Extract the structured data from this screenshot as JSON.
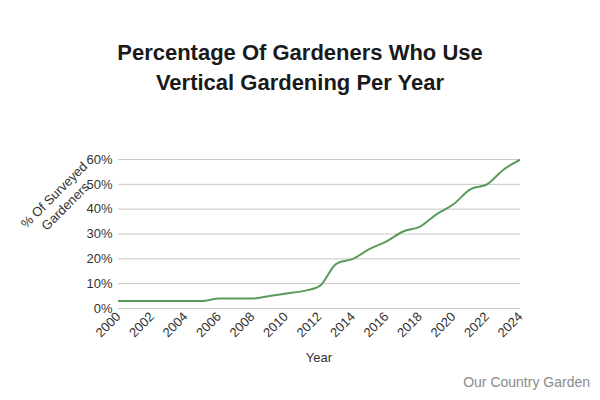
{
  "chart_data": {
    "type": "line",
    "title": "Percentage Of Gardeners Who Use Vertical Gardening Per Year",
    "x_label": "Year",
    "y_label": "% Of Surveyed Gardeners",
    "caption": "Our Country Garden",
    "x": [
      2000,
      2001,
      2002,
      2003,
      2004,
      2005,
      2006,
      2007,
      2008,
      2009,
      2010,
      2011,
      2012,
      2013,
      2014,
      2015,
      2016,
      2017,
      2018,
      2019,
      2020,
      2021,
      2022,
      2023,
      2024
    ],
    "values": [
      3,
      3,
      3,
      3,
      3,
      3,
      4,
      4,
      4,
      5,
      6,
      7,
      9,
      18,
      20,
      24,
      27,
      31,
      33,
      38,
      42,
      48,
      50,
      56,
      60
    ],
    "color": "#5a9a5a",
    "xlim": [
      2000,
      2024
    ],
    "xticks": [
      2000,
      2002,
      2004,
      2006,
      2008,
      2010,
      2012,
      2014,
      2016,
      2018,
      2020,
      2022,
      2024
    ],
    "ylim": [
      0,
      60
    ],
    "yticks": [
      {
        "value": 0,
        "label": "0%"
      },
      {
        "value": 10,
        "label": "10%"
      },
      {
        "value": 20,
        "label": "20%"
      },
      {
        "value": 30,
        "label": "30%"
      },
      {
        "value": 40,
        "label": "40%"
      },
      {
        "value": 50,
        "label": "50%"
      },
      {
        "value": 60,
        "label": "60%"
      }
    ],
    "grid": true
  }
}
